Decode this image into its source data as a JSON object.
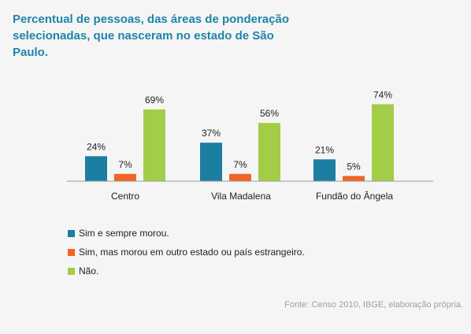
{
  "title": "Percentual de pessoas, das áreas de ponderação selecionadas, que nasceram no estado de São Paulo.",
  "source": "Fonte: Censo 2010, IBGE,  elaboração própria.",
  "colors": {
    "series_1": "#1c7ea0",
    "series_2": "#f26522",
    "series_3": "#a3cd47"
  },
  "chart_data": {
    "type": "bar",
    "title": "Percentual de pessoas, das áreas de ponderação selecionadas, que nasceram no estado de São Paulo.",
    "categories": [
      "Centro",
      "Vila Madalena",
      "Fundão do Ângela"
    ],
    "series": [
      {
        "name": "Sim e sempre morou.",
        "values": [
          24,
          37,
          21
        ],
        "labels": [
          "24%",
          "37%",
          "21%"
        ]
      },
      {
        "name": "Sim, mas morou em outro estado ou país estrangeiro.",
        "values": [
          7,
          7,
          5
        ],
        "labels": [
          "7%",
          "7%",
          "5%"
        ]
      },
      {
        "name": "Não.",
        "values": [
          69,
          56,
          74
        ],
        "labels": [
          "69%",
          "56%",
          "74%"
        ]
      }
    ],
    "xlabel": "",
    "ylabel": "",
    "ylim": [
      0,
      100
    ],
    "grid": false,
    "legend": "bottom-left"
  }
}
